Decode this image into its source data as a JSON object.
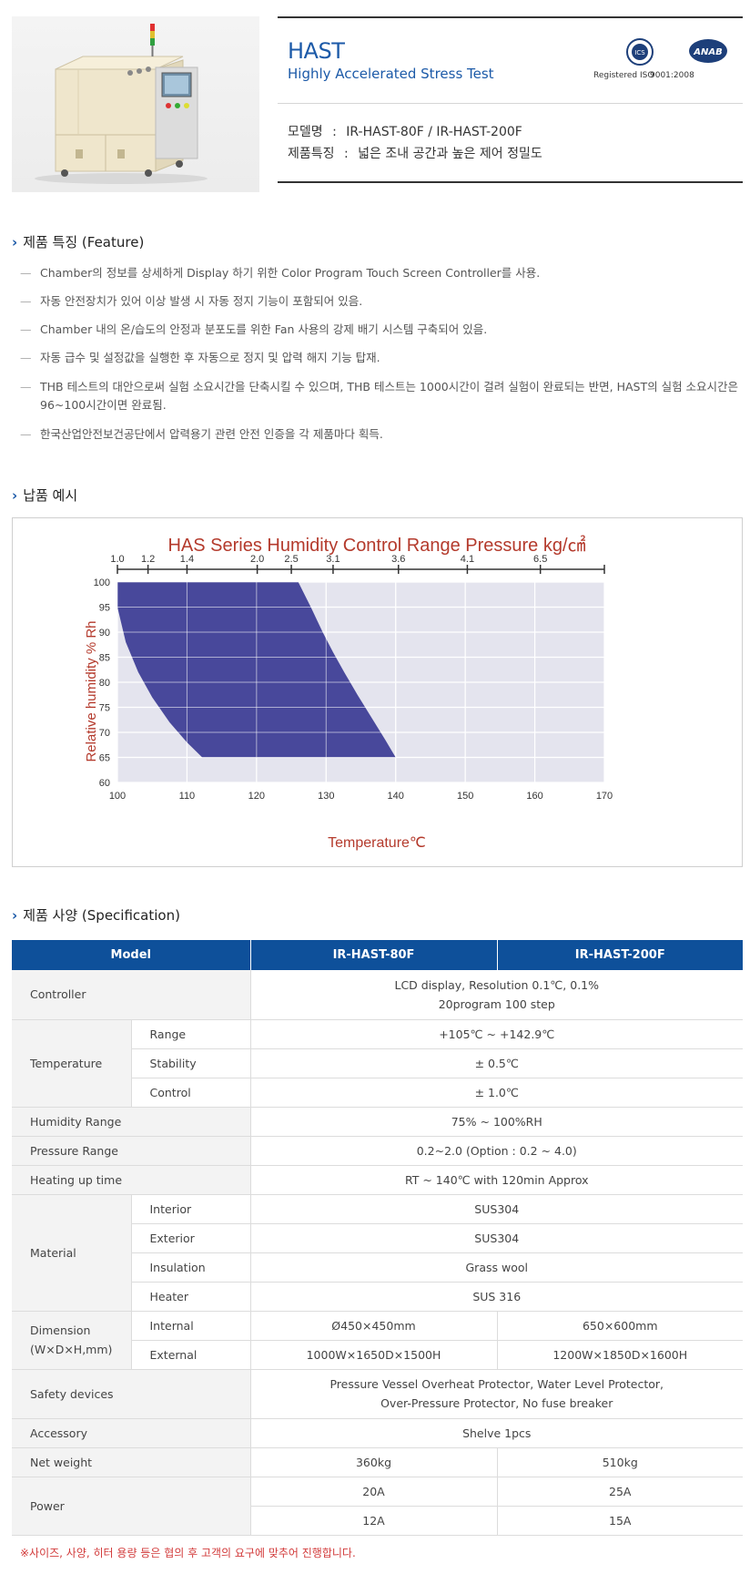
{
  "header": {
    "title": "HAST",
    "subtitle": "Highly Accelerated Stress Test",
    "cert_iso": {
      "badge": "ICS",
      "caption": "Registered ISO"
    },
    "cert_anab": {
      "badge": "ANAB",
      "caption": "9001:2008"
    },
    "model_label": "모델명",
    "model_value": "IR-HAST-80F / IR-HAST-200F",
    "feature_label": "제품특징",
    "feature_value": "넓은 조내 공간과 높은 제어 정밀도",
    "colon": ":"
  },
  "features": {
    "title": "제품 특징 (Feature)",
    "items": [
      "Chamber의 정보를 상세하게 Display 하기 위한 Color Program Touch Screen Controller를 사용.",
      "자동 안전장치가 있어 이상 발생 시 자동 정지 기능이 포함되어 있음.",
      "Chamber 내의 온/습도의 안정과 분포도를 위한 Fan 사용의 강제 배기 시스템 구축되어 있음.",
      "자동 급수 및 설정값을 실행한 후 자동으로 정지 및 압력 해지 기능 탑재.",
      "THB 테스트의 대안으로써 실험 소요시간을 단축시킬 수 있으며, THB 테스트는 1000시간이 걸려 실험이 완료되는 반면, HAST의 실험 소요시간은 96~100시간이면 완료됨.",
      "한국산업안전보건공단에서 압력용기 관련 안전 인증을 각 제품마다 획득."
    ]
  },
  "delivery": {
    "title": "납품 예시"
  },
  "chart_data": {
    "type": "area",
    "title": "HAS Series Humidity Control Range Pressure kg/㎠",
    "xlabel": "Temperature℃",
    "ylabel": "Relative humidity % Rh",
    "xlim": [
      100,
      170
    ],
    "ylim": [
      60,
      100
    ],
    "x_ticks": [
      "100",
      "110",
      "120",
      "130",
      "140",
      "150",
      "160",
      "170"
    ],
    "y_ticks": [
      "60",
      "65",
      "70",
      "75",
      "80",
      "85",
      "90",
      "95",
      "100"
    ],
    "pressure_ticks": [
      {
        "label": "1.0",
        "temp": 100
      },
      {
        "label": "1.2",
        "temp": 104.4
      },
      {
        "label": "1.4",
        "temp": 110
      },
      {
        "label": "2.0",
        "temp": 120.1
      },
      {
        "label": "2.5",
        "temp": 125
      },
      {
        "label": "3.1",
        "temp": 131
      },
      {
        "label": "3.6",
        "temp": 140.4
      },
      {
        "label": "4.1",
        "temp": 150.3
      },
      {
        "label": "6.5",
        "temp": 160.8
      }
    ],
    "grid": true,
    "series": [
      {
        "color": "#3f3f96",
        "points": [
          [
            100,
            100
          ],
          [
            126,
            100
          ],
          [
            127.8,
            95
          ],
          [
            129.5,
            90
          ],
          [
            131,
            86
          ],
          [
            132.6,
            82
          ],
          [
            134.5,
            77.5
          ],
          [
            136.5,
            73
          ],
          [
            138.5,
            68.5
          ],
          [
            140,
            65
          ],
          [
            112.2,
            65
          ],
          [
            110,
            68
          ],
          [
            107.5,
            72
          ],
          [
            105,
            77
          ],
          [
            103,
            82
          ],
          [
            101.2,
            88
          ],
          [
            100,
            95
          ],
          [
            100,
            100
          ]
        ]
      }
    ]
  },
  "spec": {
    "title": "제품 사양 (Specification)",
    "col_model": "Model",
    "col_80": "IR-HAST-80F",
    "col_200": "IR-HAST-200F",
    "controller_label": "Controller",
    "controller_line1": "LCD display, Resolution 0.1℃, 0.1%",
    "controller_line2": "20program 100 step",
    "temperature_label": "Temperature",
    "range_label": "Range",
    "range_value": "+105℃ ~ +142.9℃",
    "stability_label": "Stability",
    "stability_value": "± 0.5℃",
    "control_label": "Control",
    "control_value": "± 1.0℃",
    "humidity_label": "Humidity Range",
    "humidity_value": "75% ~ 100%RH",
    "pressure_label": "Pressure Range",
    "pressure_value": "0.2~2.0 (Option : 0.2 ~ 4.0)",
    "heating_label": "Heating up time",
    "heating_value": "RT ~ 140℃ with 120min Approx",
    "material_label": "Material",
    "interior_label": "Interior",
    "interior_value": "SUS304",
    "exterior_label": "Exterior",
    "exterior_value": "SUS304",
    "insulation_label": "Insulation",
    "insulation_value": "Grass wool",
    "heater_label": "Heater",
    "heater_value": "SUS 316",
    "dimension_label_1": "Dimension",
    "dimension_label_2": "(W×D×H,mm)",
    "internal_label": "Internal",
    "internal_80": "Ø450×450mm",
    "internal_200": "650×600mm",
    "external_label": "External",
    "external_80": "1000W×1650D×1500H",
    "external_200": "1200W×1850D×1600H",
    "safety_label": "Safety devices",
    "safety_line1": "Pressure Vessel Overheat Protector, Water Level Protector,",
    "safety_line2": "Over-Pressure Protector, No fuse breaker",
    "accessory_label": "Accessory",
    "accessory_value": "Shelve 1pcs",
    "weight_label": "Net weight",
    "weight_80": "360kg",
    "weight_200": "510kg",
    "power_label": "Power",
    "power_80_a": "20A",
    "power_200_a": "25A",
    "power_80_b": "12A",
    "power_200_b": "15A"
  },
  "note": "※사이즈, 사양, 히터 용량 등은 협의 후 고객의 요구에 맞추어 진행합니다.",
  "colors": {
    "brand_blue": "#1c5aa8",
    "table_header": "#0e509a",
    "chart_fill": "#3f3f96",
    "chart_text": "#b43a2c",
    "note_red": "#d23a3a"
  }
}
